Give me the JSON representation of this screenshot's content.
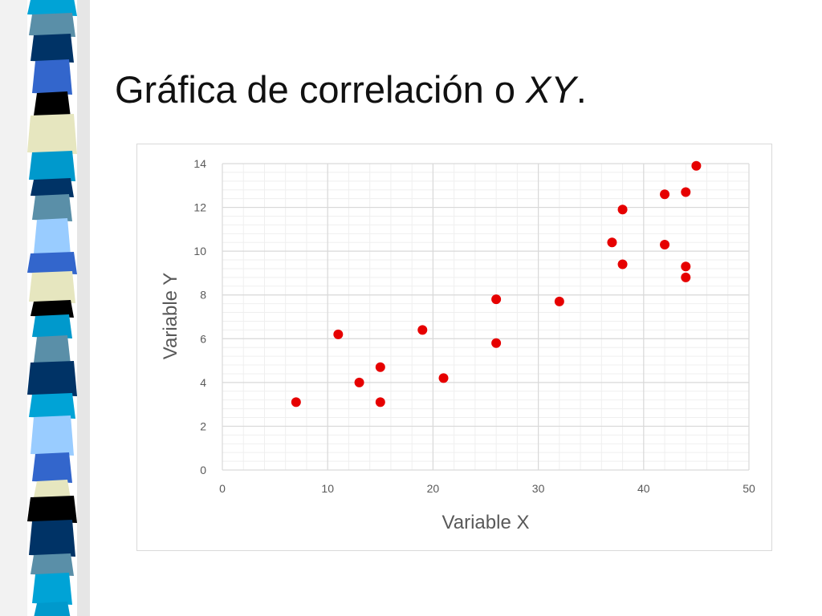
{
  "slide": {
    "title_prefix": "Gráfica de correlación o ",
    "title_italic": "XY",
    "title_suffix": ".",
    "stripe_colors": [
      "#00a3d6",
      "#5a8fa8",
      "#003366",
      "#3366cc",
      "#000000",
      "#e6e6bf",
      "#0099cc",
      "#99ccff"
    ]
  },
  "chart_data": {
    "type": "scatter",
    "title": "",
    "xlabel": "Variable X",
    "ylabel": "Variable Y",
    "xlim": [
      0,
      50
    ],
    "ylim": [
      0,
      14
    ],
    "x_ticks": [
      0,
      10,
      20,
      30,
      40,
      50
    ],
    "y_ticks": [
      0,
      2,
      4,
      6,
      8,
      10,
      12,
      14
    ],
    "grid": true,
    "marker_color": "#e60000",
    "points": [
      {
        "x": 7,
        "y": 3.1
      },
      {
        "x": 11,
        "y": 6.2
      },
      {
        "x": 13,
        "y": 4.0
      },
      {
        "x": 15,
        "y": 4.7
      },
      {
        "x": 15,
        "y": 3.1
      },
      {
        "x": 19,
        "y": 6.4
      },
      {
        "x": 21,
        "y": 4.2
      },
      {
        "x": 26,
        "y": 7.8
      },
      {
        "x": 26,
        "y": 5.8
      },
      {
        "x": 32,
        "y": 7.7
      },
      {
        "x": 37,
        "y": 10.4
      },
      {
        "x": 38,
        "y": 11.9
      },
      {
        "x": 38,
        "y": 9.4
      },
      {
        "x": 42,
        "y": 12.6
      },
      {
        "x": 42,
        "y": 10.3
      },
      {
        "x": 44,
        "y": 12.7
      },
      {
        "x": 44,
        "y": 9.3
      },
      {
        "x": 44,
        "y": 8.8
      },
      {
        "x": 45,
        "y": 13.9
      }
    ]
  }
}
